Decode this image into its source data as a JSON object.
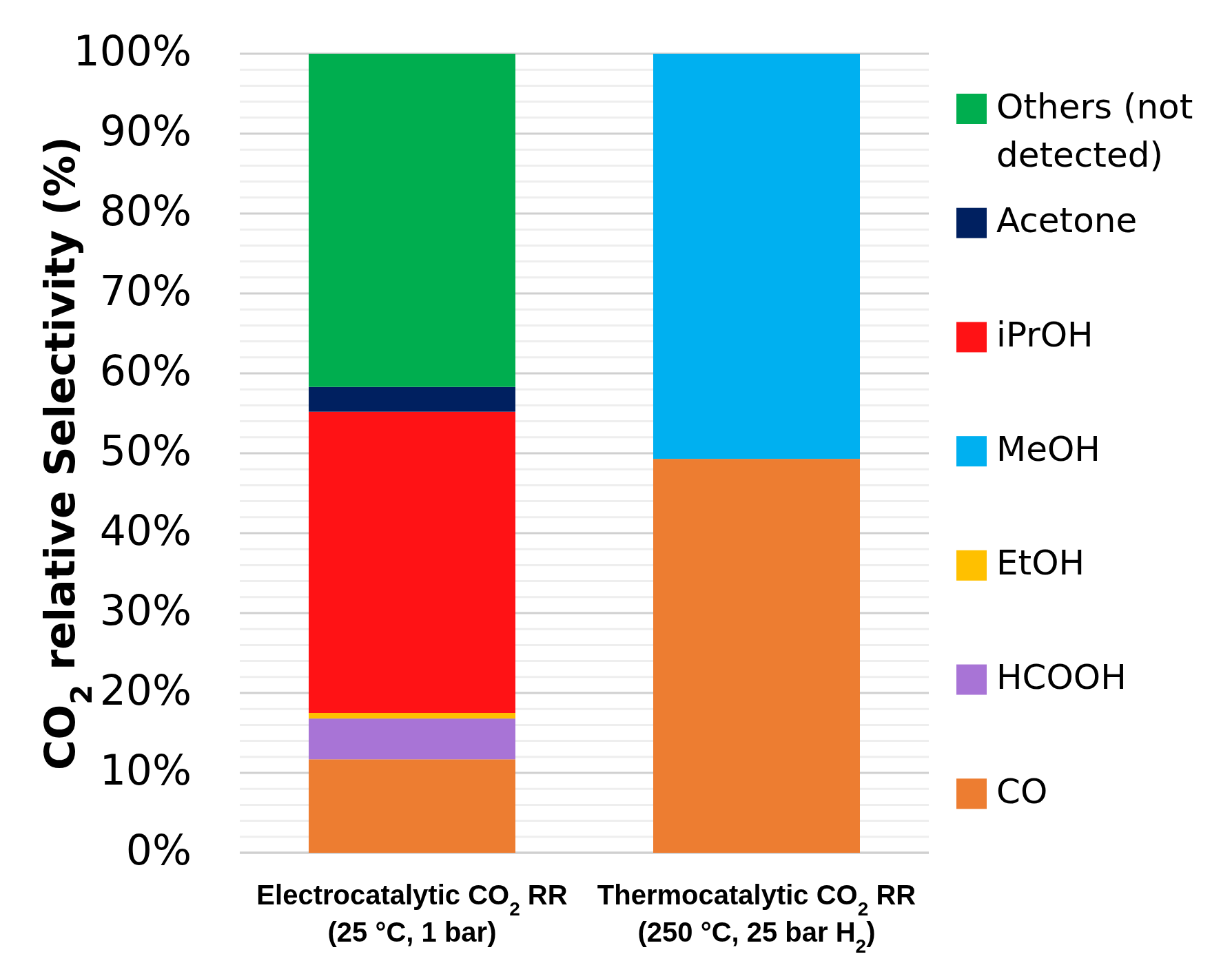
{
  "chart_data": {
    "type": "bar",
    "stacked": true,
    "ylabel": "CO$_{2}$ relative Selectivity (%)",
    "categories": [
      "Electrocatalytic CO$_{2}$ RR\n(25 °C, 1 bar)",
      "Thermocatalytic CO$_{2}$ RR\n(250 °C, 25 bar H$_{2}$)"
    ],
    "series": [
      {
        "name": "CO",
        "color": "#ed7d31",
        "values": [
          11.7,
          49.3
        ]
      },
      {
        "name": "HCOOH",
        "color": "#a874d6",
        "values": [
          5.1,
          null
        ]
      },
      {
        "name": "EtOH",
        "color": "#ffc000",
        "values": [
          0.7,
          null
        ]
      },
      {
        "name": "MeOH",
        "color": "#00b0f0",
        "values": [
          null,
          50.7
        ]
      },
      {
        "name": "iPrOH",
        "color": "#ff1215",
        "values": [
          37.7,
          null
        ]
      },
      {
        "name": "Acetone",
        "color": "#002060",
        "values": [
          3.1,
          null
        ]
      },
      {
        "name": "Others (not detected)",
        "color": "#00ae4f",
        "values": [
          41.7,
          null
        ]
      }
    ],
    "ylim": [
      0,
      100
    ],
    "yticks": [
      {
        "value": 0,
        "label": "0%"
      },
      {
        "value": 2,
        "label": null
      },
      {
        "value": 4,
        "label": null
      },
      {
        "value": 6,
        "label": null
      },
      {
        "value": 8,
        "label": null
      },
      {
        "value": 10,
        "label": "10%"
      },
      {
        "value": 12,
        "label": null
      },
      {
        "value": 14,
        "label": null
      },
      {
        "value": 16,
        "label": null
      },
      {
        "value": 18,
        "label": null
      },
      {
        "value": 20,
        "label": "20%"
      },
      {
        "value": 22,
        "label": null
      },
      {
        "value": 24,
        "label": null
      },
      {
        "value": 26,
        "label": null
      },
      {
        "value": 28,
        "label": null
      },
      {
        "value": 30,
        "label": "30%"
      },
      {
        "value": 32,
        "label": null
      },
      {
        "value": 34,
        "label": null
      },
      {
        "value": 36,
        "label": null
      },
      {
        "value": 38,
        "label": null
      },
      {
        "value": 40,
        "label": "40%"
      },
      {
        "value": 42,
        "label": null
      },
      {
        "value": 44,
        "label": null
      },
      {
        "value": 46,
        "label": null
      },
      {
        "value": 48,
        "label": null
      },
      {
        "value": 50,
        "label": "50%"
      },
      {
        "value": 52,
        "label": null
      },
      {
        "value": 54,
        "label": null
      },
      {
        "value": 56,
        "label": null
      },
      {
        "value": 58,
        "label": null
      },
      {
        "value": 60,
        "label": "60%"
      },
      {
        "value": 62,
        "label": null
      },
      {
        "value": 64,
        "label": null
      },
      {
        "value": 66,
        "label": null
      },
      {
        "value": 68,
        "label": null
      },
      {
        "value": 70,
        "label": "70%"
      },
      {
        "value": 72,
        "label": null
      },
      {
        "value": 74,
        "label": null
      },
      {
        "value": 76,
        "label": null
      },
      {
        "value": 78,
        "label": null
      },
      {
        "value": 80,
        "label": "80%"
      },
      {
        "value": 82,
        "label": null
      },
      {
        "value": 84,
        "label": null
      },
      {
        "value": 86,
        "label": null
      },
      {
        "value": 88,
        "label": null
      },
      {
        "value": 90,
        "label": "90%"
      },
      {
        "value": 92,
        "label": null
      },
      {
        "value": 94,
        "label": null
      },
      {
        "value": 96,
        "label": null
      },
      {
        "value": 98,
        "label": null
      },
      {
        "value": 100,
        "label": "100%"
      }
    ],
    "grid": "y",
    "legend": "right"
  }
}
